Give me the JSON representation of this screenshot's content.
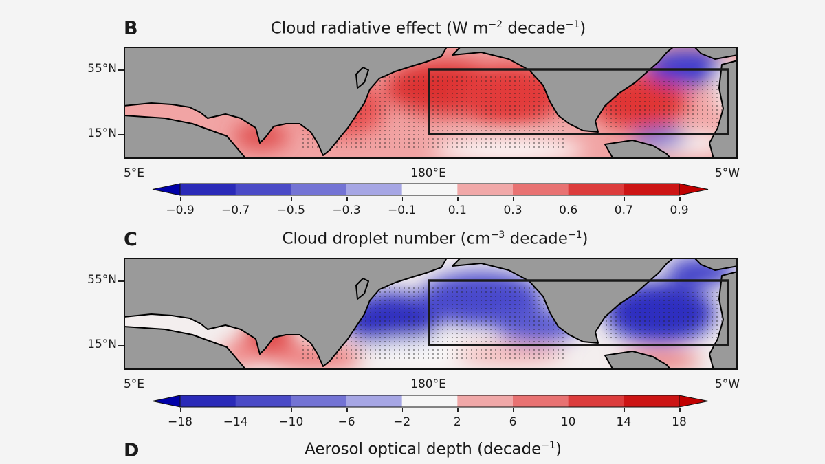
{
  "panels": [
    {
      "label": "B",
      "title": {
        "main": "Cloud radiative effect (W m",
        "sup1": "−2",
        "mid": " decade",
        "sup2": "−1",
        "end": ")"
      },
      "lat_ticks": [
        "55°N",
        "15°N"
      ],
      "lon_ticks": [
        "5°E",
        "180°E",
        "5°W"
      ],
      "colorbar": {
        "ticks": [
          "−0.9",
          "−0.7",
          "−0.5",
          "−0.3",
          "−0.1",
          "0.1",
          "0.3",
          "0.6",
          "0.7",
          "0.9"
        ],
        "colors": [
          "#0000a8",
          "#2a2ab8",
          "#4a4ac6",
          "#7373d4",
          "#a6a6e4",
          "#f6f6f6",
          "#f0a8a8",
          "#e87272",
          "#dc3c3c",
          "#cc1414",
          "#c00000"
        ],
        "extend": "both"
      },
      "stippling": true
    },
    {
      "label": "C",
      "title": {
        "main": "Cloud droplet number (cm",
        "sup1": "−3",
        "mid": " decade",
        "sup2": "−1",
        "end": ")"
      },
      "lat_ticks": [
        "55°N",
        "15°N"
      ],
      "lon_ticks": [
        "5°E",
        "180°E",
        "5°W"
      ],
      "colorbar": {
        "ticks": [
          "−18",
          "−14",
          "−10",
          "−6",
          "−2",
          "2",
          "6",
          "10",
          "14",
          "18"
        ],
        "colors": [
          "#0000a8",
          "#2a2ab8",
          "#4a4ac6",
          "#7373d4",
          "#a6a6e4",
          "#f6f6f6",
          "#f0a8a8",
          "#e87272",
          "#dc3c3c",
          "#cc1414",
          "#c00000"
        ],
        "extend": "both"
      },
      "stippling": true
    },
    {
      "label": "D",
      "title": {
        "main": "Aerosol optical depth (decade",
        "sup2": "−1",
        "end": ")"
      }
    }
  ],
  "colors": {
    "land": "#9a9a9a",
    "coastline": "#000000",
    "box": "#1a1a1a"
  }
}
